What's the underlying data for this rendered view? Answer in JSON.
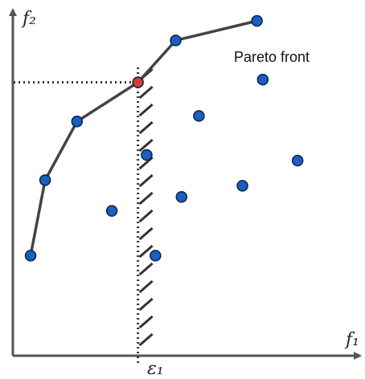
{
  "labels": {
    "y_axis": "f₂",
    "x_axis": "f₁",
    "epsilon": "ε₁",
    "front": "Pareto front"
  },
  "colors": {
    "axis": "#555555",
    "front_line": "#444444",
    "point_fill": "#1a5fc2",
    "point_stroke": "#0b2246",
    "highlight_fill": "#d93a3a",
    "constraint": "#333333"
  },
  "front_points": [
    {
      "f1": 0.05,
      "f2": 0.16
    },
    {
      "f1": 0.1,
      "f2": 0.43
    },
    {
      "f1": 0.21,
      "f2": 0.64
    },
    {
      "f1": 0.42,
      "f2": 0.78
    },
    {
      "f1": 0.55,
      "f2": 0.93
    },
    {
      "f1": 0.83,
      "f2": 1.0
    }
  ],
  "selected_point": {
    "f1": 0.42,
    "f2": 0.78
  },
  "dominated_points": [
    {
      "f1": 0.33,
      "f2": 0.32
    },
    {
      "f1": 0.45,
      "f2": 0.52
    },
    {
      "f1": 0.48,
      "f2": 0.16
    },
    {
      "f1": 0.57,
      "f2": 0.37
    },
    {
      "f1": 0.63,
      "f2": 0.66
    },
    {
      "f1": 0.78,
      "f2": 0.41
    },
    {
      "f1": 0.85,
      "f2": 0.79
    },
    {
      "f1": 0.97,
      "f2": 0.5
    }
  ],
  "epsilon_value": 0.42
}
